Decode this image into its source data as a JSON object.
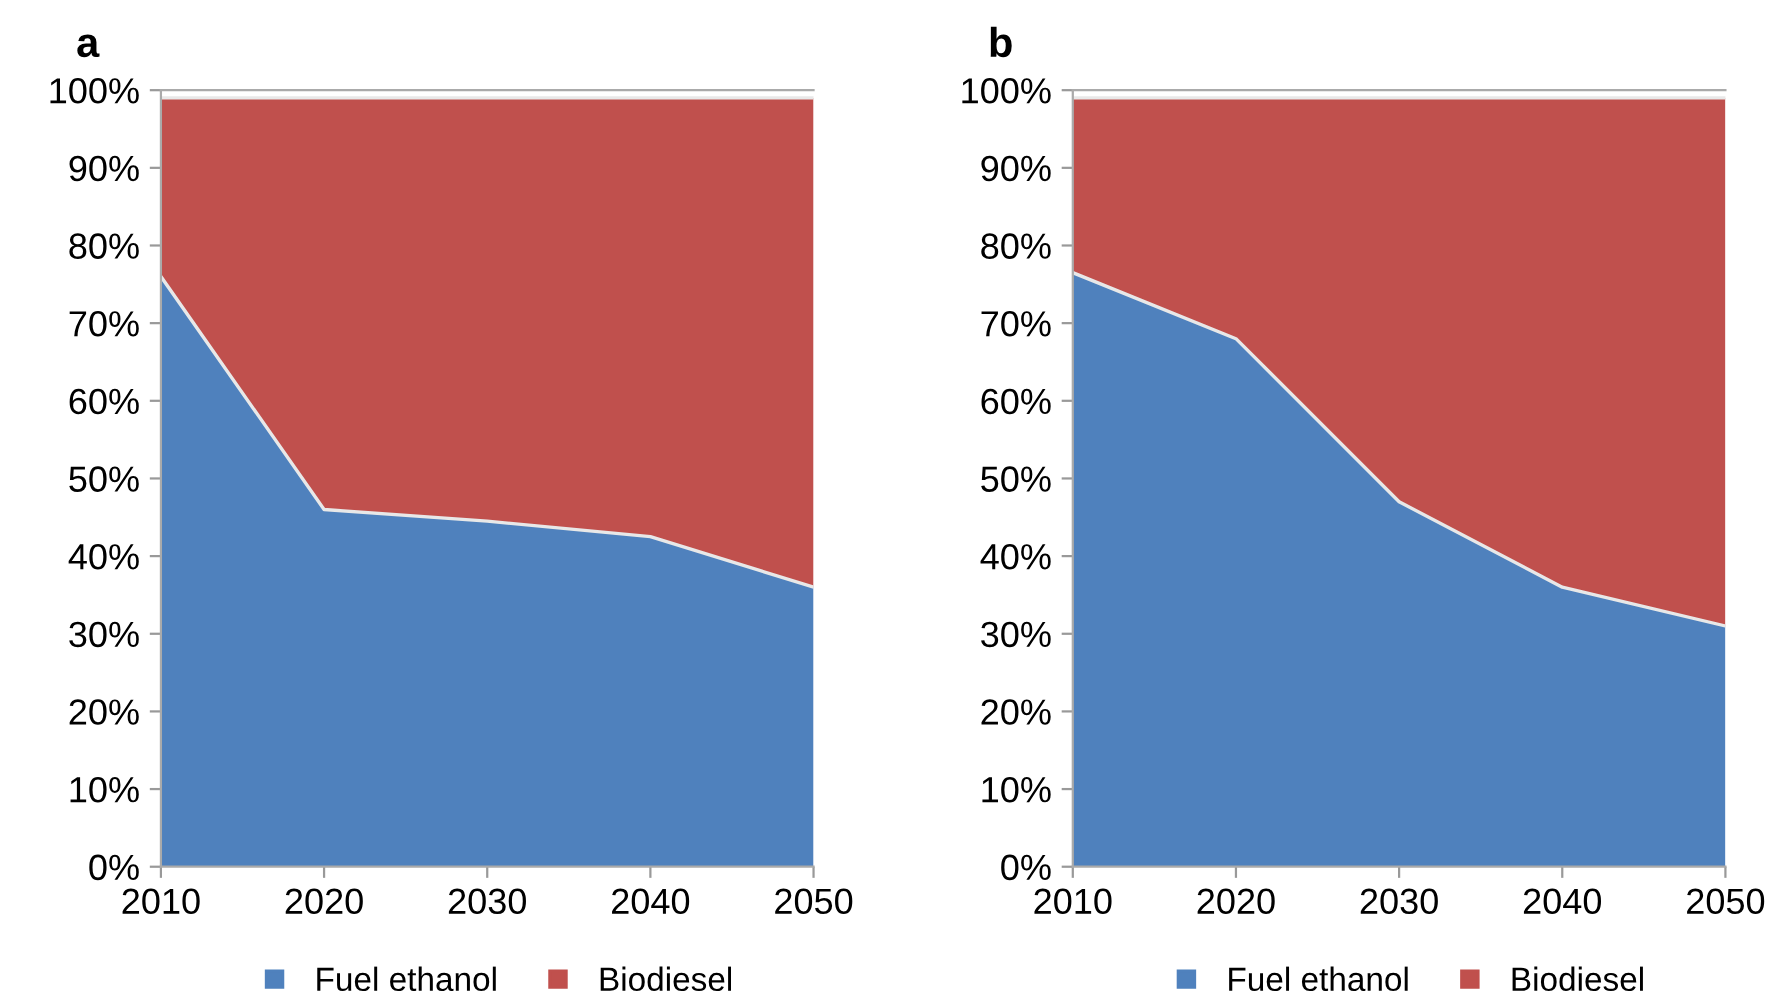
{
  "chart_data": [
    {
      "type": "area",
      "title": "a",
      "stacked": true,
      "x": [
        2010,
        2020,
        2030,
        2040,
        2050
      ],
      "xlim": [
        2010,
        2050
      ],
      "xticks": [
        2010,
        2020,
        2030,
        2040,
        2050
      ],
      "ylim": [
        0,
        100
      ],
      "yticks": [
        {
          "value": 0,
          "label": "0%"
        },
        {
          "value": 10,
          "label": "10%"
        },
        {
          "value": 20,
          "label": "20%"
        },
        {
          "value": 30,
          "label": "30%"
        },
        {
          "value": 40,
          "label": "40%"
        },
        {
          "value": 50,
          "label": "50%"
        },
        {
          "value": 60,
          "label": "60%"
        },
        {
          "value": 70,
          "label": "70%"
        },
        {
          "value": 80,
          "label": "80%"
        },
        {
          "value": 90,
          "label": "90%"
        },
        {
          "value": 100,
          "label": "100%"
        }
      ],
      "legend": "bottom",
      "grid": false,
      "series": [
        {
          "name": "Fuel ethanol",
          "color": "#4f81bd",
          "values": [
            76,
            46,
            44.5,
            42.5,
            36
          ]
        },
        {
          "name": "Biodiesel",
          "color": "#c0504d",
          "values": [
            23,
            53,
            54.5,
            56.5,
            63
          ]
        }
      ]
    },
    {
      "type": "area",
      "title": "b",
      "stacked": true,
      "x": [
        2010,
        2020,
        2030,
        2040,
        2050
      ],
      "xlim": [
        2010,
        2050
      ],
      "xticks": [
        2010,
        2020,
        2030,
        2040,
        2050
      ],
      "ylim": [
        0,
        100
      ],
      "yticks": [
        {
          "value": 0,
          "label": "0%"
        },
        {
          "value": 10,
          "label": "10%"
        },
        {
          "value": 20,
          "label": "20%"
        },
        {
          "value": 30,
          "label": "30%"
        },
        {
          "value": 40,
          "label": "40%"
        },
        {
          "value": 50,
          "label": "50%"
        },
        {
          "value": 60,
          "label": "60%"
        },
        {
          "value": 70,
          "label": "70%"
        },
        {
          "value": 80,
          "label": "80%"
        },
        {
          "value": 90,
          "label": "90%"
        },
        {
          "value": 100,
          "label": "100%"
        }
      ],
      "legend": "bottom",
      "grid": false,
      "series": [
        {
          "name": "Fuel ethanol",
          "color": "#4f81bd",
          "values": [
            76.5,
            68,
            47,
            36,
            31
          ]
        },
        {
          "name": "Biodiesel",
          "color": "#c0504d",
          "values": [
            22.5,
            31,
            52,
            63,
            68
          ]
        }
      ]
    }
  ]
}
